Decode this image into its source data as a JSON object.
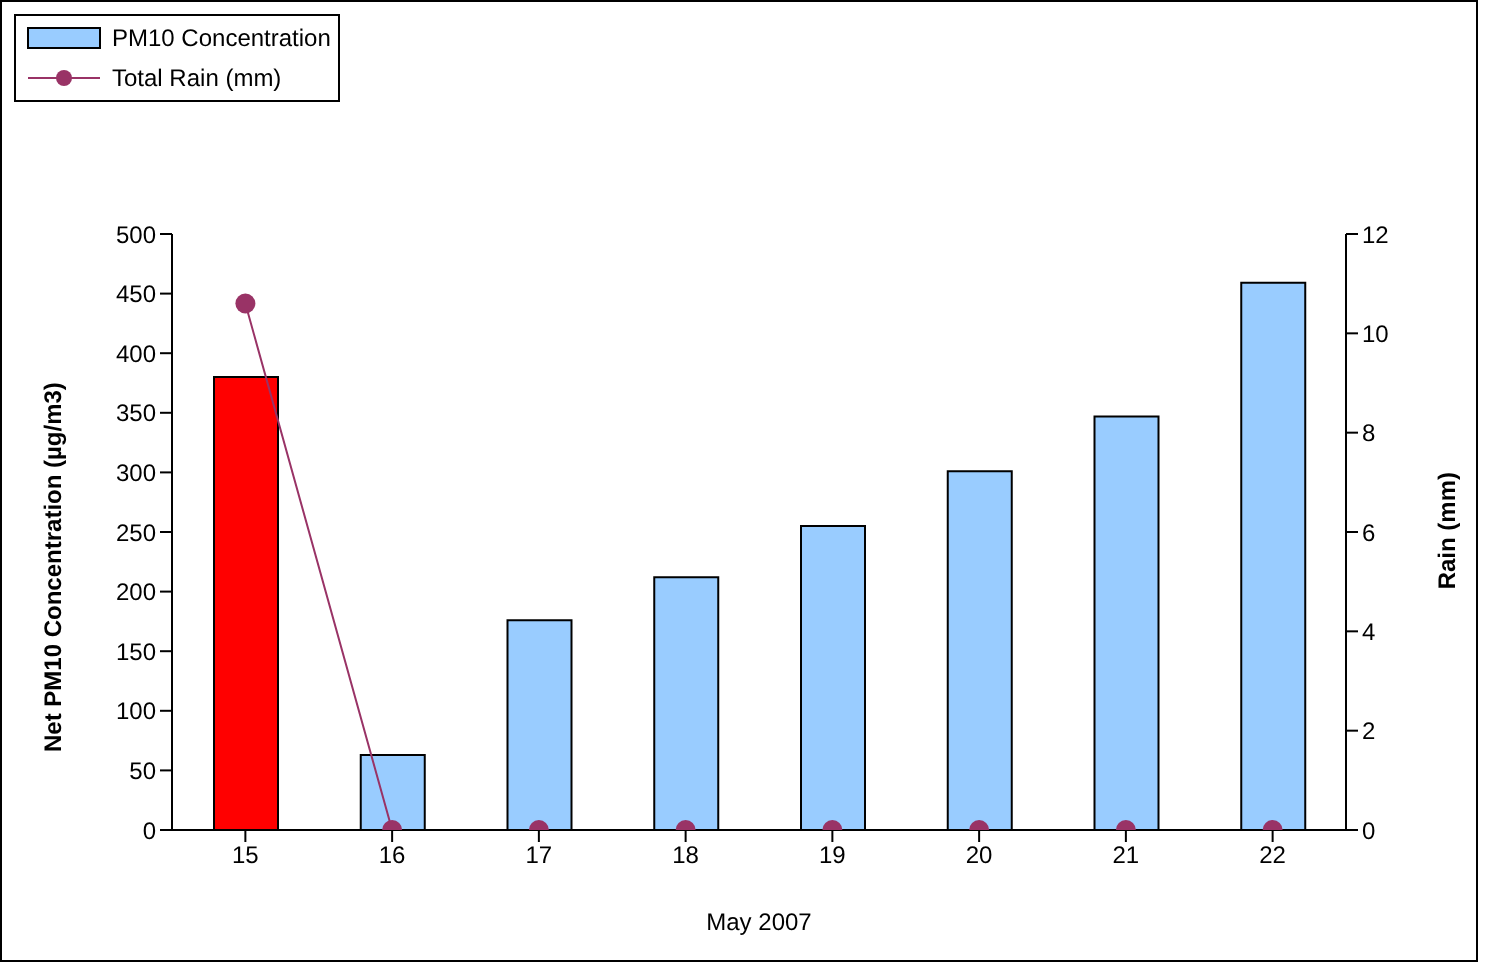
{
  "chart_data": {
    "type": "bar",
    "categories": [
      "15",
      "16",
      "17",
      "18",
      "19",
      "20",
      "21",
      "22"
    ],
    "xlabel": "May 2007",
    "ylabel": "Net PM10 Concentration (µg/m3)",
    "y2label": "Rain (mm)",
    "series": [
      {
        "name": "PM10 Concentration",
        "color": "#99ccff",
        "colors": [
          "#ff0000",
          "#99ccff",
          "#99ccff",
          "#99ccff",
          "#99ccff",
          "#99ccff",
          "#99ccff",
          "#99ccff"
        ],
        "values": [
          380,
          63,
          176,
          212,
          255,
          301,
          347,
          459
        ]
      },
      {
        "name": "Total Rain (mm)",
        "type": "line",
        "axis": "y2",
        "color": "#993366",
        "values": [
          10.6,
          0,
          0,
          0,
          0,
          0,
          0,
          0
        ]
      }
    ],
    "ylim": [
      0,
      500
    ],
    "yticks": [
      0,
      50,
      100,
      150,
      200,
      250,
      300,
      350,
      400,
      450,
      500
    ],
    "y2lim": [
      0,
      12
    ],
    "y2ticks": [
      0,
      2,
      4,
      6,
      8,
      10,
      12
    ],
    "legend": "top left",
    "marker": "circle"
  }
}
